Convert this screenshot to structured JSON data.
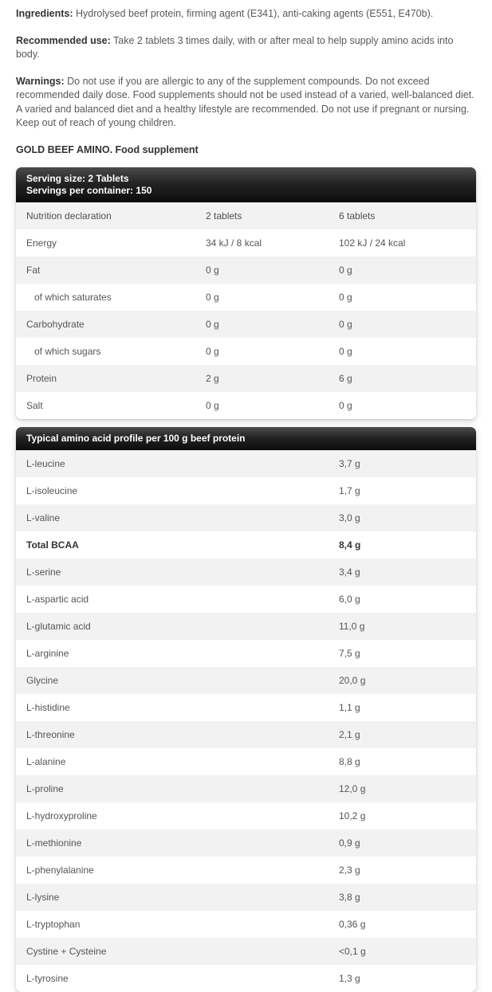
{
  "intro": {
    "paragraphs": [
      {
        "label": "Ingredients:",
        "text": "Hydrolysed beef protein, firming agent (E341), anti-caking agents (E551, E470b)."
      },
      {
        "label": "Recommended use:",
        "text": "Take 2 tablets 3 times daily, with or after meal to help supply amino acids into body."
      },
      {
        "label": "Warnings:",
        "text": "Do not use if you are allergic to any of the supplement compounds. Do not exceed recommended daily dose. Food supplements should not be used instead of a varied, well-balanced diet. A varied and balanced diet and a healthy lifestyle are recommended. Do not use if pregnant or nursing. Keep out of reach of young children."
      }
    ],
    "product_line": "GOLD BEEF AMINO. Food supplement"
  },
  "nutrition_card": {
    "serving_size_label": "Serving size:",
    "serving_size_value": "2 Tablets",
    "servings_label": "Servings per container:",
    "servings_value": "150",
    "columns": [
      "Nutrition declaration",
      "2 tablets",
      "6 tablets"
    ],
    "rows": [
      {
        "label": "Energy",
        "per2": "34 kJ / 8 kcal",
        "per6": "102 kJ / 24 kcal",
        "indent": false,
        "bold": false
      },
      {
        "label": "Fat",
        "per2": "0 g",
        "per6": "0 g",
        "indent": false,
        "bold": false
      },
      {
        "label": "of which saturates",
        "per2": "0 g",
        "per6": "0 g",
        "indent": true,
        "bold": false
      },
      {
        "label": "Carbohydrate",
        "per2": "0 g",
        "per6": "0 g",
        "indent": false,
        "bold": false
      },
      {
        "label": "of which sugars",
        "per2": "0 g",
        "per6": "0 g",
        "indent": true,
        "bold": false
      },
      {
        "label": "Protein",
        "per2": "2 g",
        "per6": "6 g",
        "indent": false,
        "bold": false
      },
      {
        "label": "Salt",
        "per2": "0 g",
        "per6": "0 g",
        "indent": false,
        "bold": false
      }
    ]
  },
  "amino_card": {
    "header": "Typical amino acid profile per 100 g beef protein",
    "rows": [
      {
        "label": "L-leucine",
        "value": "3,7 g",
        "bold": false
      },
      {
        "label": "L-isoleucine",
        "value": "1,7 g",
        "bold": false
      },
      {
        "label": "L-valine",
        "value": "3,0 g",
        "bold": false
      },
      {
        "label": "Total BCAA",
        "value": "8,4 g",
        "bold": true
      },
      {
        "label": "L-serine",
        "value": "3,4 g",
        "bold": false
      },
      {
        "label": "L-aspartic acid",
        "value": "6,0 g",
        "bold": false
      },
      {
        "label": "L-glutamic acid",
        "value": "11,0 g",
        "bold": false
      },
      {
        "label": "L-arginine",
        "value": "7,5 g",
        "bold": false
      },
      {
        "label": "Glycine",
        "value": "20,0 g",
        "bold": false
      },
      {
        "label": "L-histidine",
        "value": "1,1 g",
        "bold": false
      },
      {
        "label": "L-threonine",
        "value": "2,1 g",
        "bold": false
      },
      {
        "label": "L-alanine",
        "value": "8,8 g",
        "bold": false
      },
      {
        "label": "L-proline",
        "value": "12,0 g",
        "bold": false
      },
      {
        "label": "L-hydroxyproline",
        "value": "10,2 g",
        "bold": false
      },
      {
        "label": "L-methionine",
        "value": "0,9 g",
        "bold": false
      },
      {
        "label": "L-phenylalanine",
        "value": "2,3 g",
        "bold": false
      },
      {
        "label": "L-lysine",
        "value": "3,8 g",
        "bold": false
      },
      {
        "label": "L-tryptophan",
        "value": "0,36 g",
        "bold": false
      },
      {
        "label": "Cystine + Cysteine",
        "value": "<0,1 g",
        "bold": false
      },
      {
        "label": "L-tyrosine",
        "value": "1,3 g",
        "bold": false
      }
    ]
  },
  "colors": {
    "header_bg_top": "#4b4b4b",
    "header_bg_bottom": "#0c0c0c",
    "header_text": "#ffffff",
    "stripe_bg": "#f2f2f2",
    "body_text": "#555555",
    "label_text": "#333333"
  }
}
